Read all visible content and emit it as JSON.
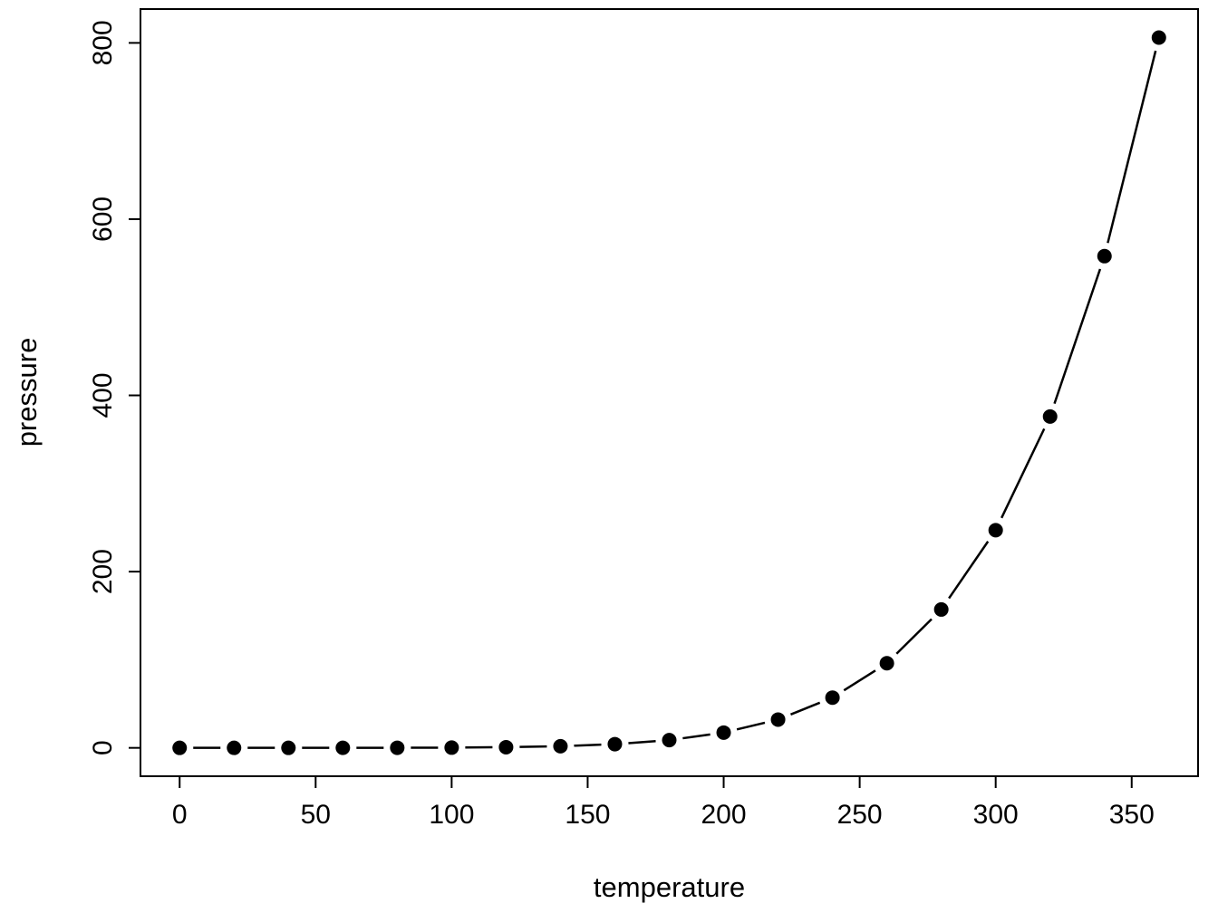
{
  "chart_data": {
    "type": "scatter",
    "subtype": "points-joined-by-line-segments (R plot type='b')",
    "title": "",
    "xlabel": "temperature",
    "ylabel": "pressure",
    "x": [
      0,
      20,
      40,
      60,
      80,
      100,
      120,
      140,
      160,
      180,
      200,
      220,
      240,
      260,
      280,
      300,
      320,
      340,
      360
    ],
    "y": [
      0.0002,
      0.0012,
      0.006,
      0.03,
      0.09,
      0.27,
      0.75,
      1.85,
      4.2,
      8.8,
      17.3,
      32.1,
      57,
      96,
      157,
      247,
      376,
      558,
      806
    ],
    "x_ticks": [
      0,
      50,
      100,
      150,
      200,
      250,
      300,
      350
    ],
    "y_ticks": [
      0,
      200,
      400,
      600,
      800
    ],
    "xlim": [
      -14.4,
      374.4
    ],
    "ylim": [
      -32.2,
      838.4
    ],
    "grid": false,
    "legend": null,
    "marker": "filled-circle",
    "marker_color": "#000000",
    "line_color": "#000000",
    "axis_color": "#000000",
    "background_color": "#ffffff"
  }
}
